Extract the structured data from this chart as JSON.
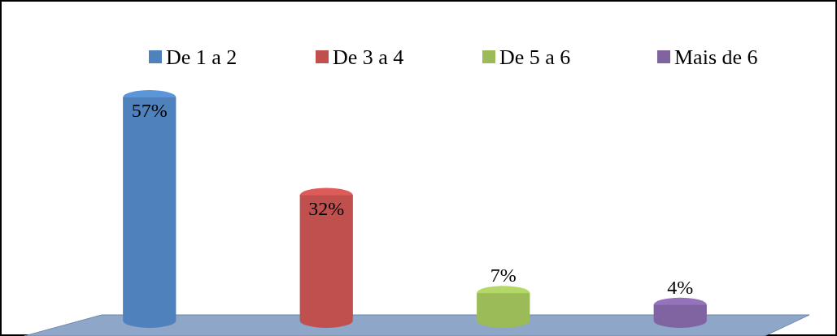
{
  "chart_data": {
    "type": "bar",
    "categories": [
      "De 1 a 2",
      "De 3 a 4",
      "De 5 a 6",
      "Mais de 6"
    ],
    "values": [
      57,
      32,
      7,
      4
    ],
    "colors": [
      "#4f81bd",
      "#c0504d",
      "#9bbb59",
      "#8064a2"
    ],
    "value_labels": [
      "57%",
      "32%",
      "7%",
      "4%"
    ]
  }
}
